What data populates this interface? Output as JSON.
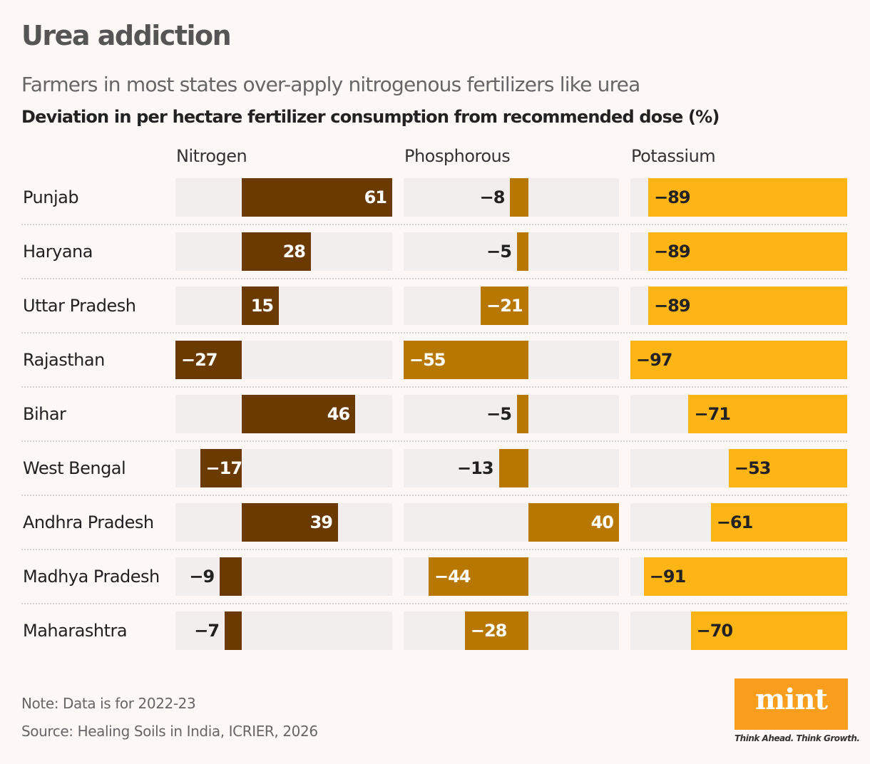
{
  "header": {
    "title": "Urea addiction",
    "subtitle": "Farmers in most states over-apply nitrogenous fertilizers like urea"
  },
  "chart_data": {
    "type": "bar",
    "orientation": "horizontal",
    "title": "Deviation in per hectare fertilizer consumption from recommended dose (%)",
    "categories": [
      "Punjab",
      "Haryana",
      "Uttar Pradesh",
      "Rajasthan",
      "Bihar",
      "West Bengal",
      "Andhra Pradesh",
      "Madhya Pradesh",
      "Maharashtra"
    ],
    "series": [
      {
        "name": "Nitrogen",
        "color": "#6b3a00",
        "label_color": "#ffffff",
        "xlim": [
          -27,
          61
        ],
        "values": [
          61,
          28,
          15,
          -27,
          46,
          -17,
          39,
          -9,
          -7
        ]
      },
      {
        "name": "Phosphorous",
        "color": "#b87800",
        "label_color": "#ffffff",
        "xlim": [
          -55,
          40
        ],
        "values": [
          -8,
          -5,
          -21,
          -55,
          -5,
          -13,
          40,
          -44,
          -28
        ]
      },
      {
        "name": "Potassium",
        "color": "#fdb515",
        "label_color": "#222222",
        "xlim": [
          -97,
          0
        ],
        "values": [
          -89,
          -89,
          -89,
          -97,
          -71,
          -53,
          -61,
          -91,
          -70
        ]
      }
    ],
    "track_color": "#f3eeee",
    "grid": false,
    "legend": "none"
  },
  "footer": {
    "note": "Note: Data is for 2022-23",
    "source": "Source: Healing Soils in India, ICRIER, 2026",
    "logo_text": "mint",
    "tagline": "Think Ahead. Think Growth.",
    "logo_color": "#f99d1c"
  }
}
